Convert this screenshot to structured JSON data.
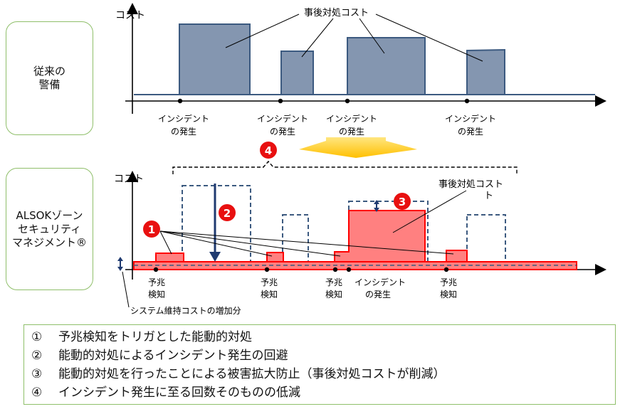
{
  "left_boxes": {
    "conventional": "従来の\n警備",
    "zone": "ALSOKゾーン\nセキュリティ\nマネジメント®"
  },
  "top_chart": {
    "ylabel": "コスト",
    "callout": "事後対処コスト",
    "incident_label_1": "インシデント",
    "incident_label_2": "の発生"
  },
  "bottom_chart": {
    "ylabel": "コスト",
    "callout_line1": "事後対処コスト",
    "callout_line2": "ト",
    "sign_label_1": "予兆",
    "sign_label_2": "検知",
    "incident_label_1": "インシデント",
    "incident_label_2": "の発生",
    "system_cost_label": "システム維持コストの増加分"
  },
  "markers": [
    "1",
    "2",
    "3",
    "4"
  ],
  "legend": [
    {
      "num": "①",
      "text": "予兆検知をトリガとした能動的対処"
    },
    {
      "num": "②",
      "text": "能動的対処によるインシデント発生の回避"
    },
    {
      "num": "③",
      "text": "能動的対処を行ったことによる被害拡大防止（事後対処コストが削減）"
    },
    {
      "num": "④",
      "text": "インシデント発生に至る回数そのものの低減"
    }
  ],
  "colors": {
    "gray_fill": "#8496b0",
    "gray_stroke": "#3c5a80",
    "red_fill": "#ff8080",
    "red_stroke": "#ff0000",
    "dashed_stroke": "#3c5a80",
    "arrow_down": "#1f3a70",
    "marker": "#e81010",
    "box_border": "#8fbf6a",
    "yellow_arrow": "#ffd24d"
  }
}
